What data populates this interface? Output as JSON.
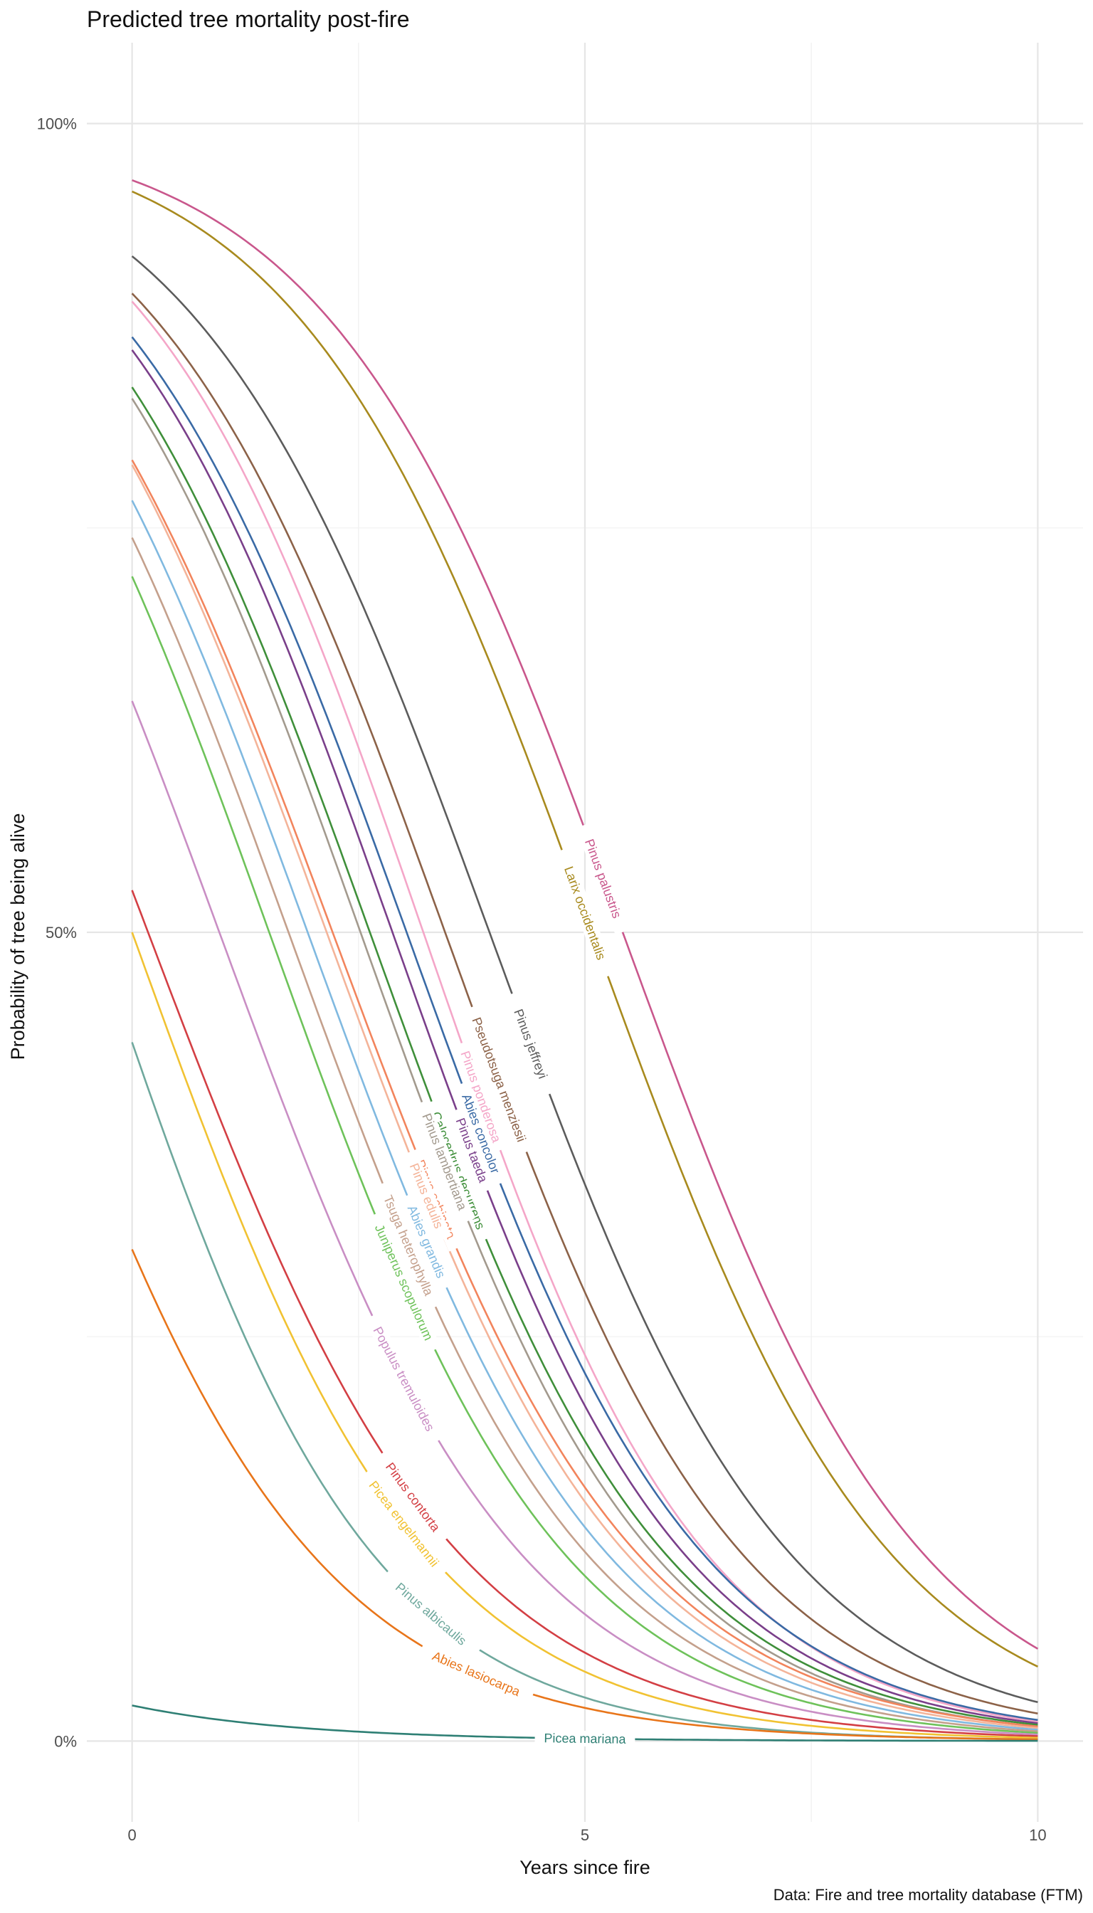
{
  "chart_data": {
    "type": "line",
    "title": "Predicted tree mortality post-fire",
    "xlabel": "Years since fire",
    "ylabel": "Probability of tree being alive",
    "caption": "Data: Fire and tree mortality database (FTM)",
    "xlim": [
      -0.5,
      10.5
    ],
    "ylim": [
      -0.05,
      1.05
    ],
    "x_ticks": [
      0,
      5,
      10
    ],
    "x_tick_labels": [
      "0",
      "5",
      "10"
    ],
    "y_ticks": [
      0,
      0.5,
      1
    ],
    "y_tick_labels": [
      "0%",
      "50%",
      "100%"
    ],
    "grid": true,
    "legend": "none (direct labels on lines)",
    "series": [
      {
        "name": "Pinus palustris",
        "color": "#c9578c",
        "y0": 0.965,
        "y10": 0.057,
        "label_x": 5.2
      },
      {
        "name": "Larix occidentalis",
        "color": "#a88a1e",
        "y0": 0.958,
        "y10": 0.046,
        "label_x": 5.0
      },
      {
        "name": "Pinus jeffreyi",
        "color": "#5c5c5c",
        "y0": 0.918,
        "y10": 0.024,
        "label_x": 4.4
      },
      {
        "name": "Pseudotsuga menziesii",
        "color": "#8c6248",
        "y0": 0.895,
        "y10": 0.017,
        "label_x": 4.05
      },
      {
        "name": "Pinus ponderosa",
        "color": "#f4a6c8",
        "y0": 0.89,
        "y10": 0.012,
        "label_x": 3.85
      },
      {
        "name": "Abies concolor",
        "color": "#3a6aa5",
        "y0": 0.868,
        "y10": 0.013,
        "label_x": 3.85
      },
      {
        "name": "Pinus taeda",
        "color": "#7a3f8a",
        "y0": 0.86,
        "y10": 0.011,
        "label_x": 3.75
      },
      {
        "name": "Calocedrus decurrens",
        "color": "#3f8f3a",
        "y0": 0.837,
        "y10": 0.01,
        "label_x": 3.6
      },
      {
        "name": "Pinus lambertiana",
        "color": "#a39a8e",
        "y0": 0.83,
        "y10": 0.009,
        "label_x": 3.45
      },
      {
        "name": "Pinus echinata",
        "color": "#f2845c",
        "y0": 0.792,
        "y10": 0.009,
        "label_x": 3.35
      },
      {
        "name": "Pinus edulis",
        "color": "#f4b499",
        "y0": 0.789,
        "y10": 0.008,
        "label_x": 3.25
      },
      {
        "name": "Abies grandis",
        "color": "#80b9e0",
        "y0": 0.767,
        "y10": 0.007,
        "label_x": 3.25
      },
      {
        "name": "Tsuga heterophylla",
        "color": "#c4a08c",
        "y0": 0.744,
        "y10": 0.006,
        "label_x": 3.05
      },
      {
        "name": "Juniperus scopulorum",
        "color": "#6ec25a",
        "y0": 0.72,
        "y10": 0.005,
        "label_x": 3.0
      },
      {
        "name": "Populus tremuloides",
        "color": "#c98ec4",
        "y0": 0.643,
        "y10": 0.004,
        "label_x": 3.0
      },
      {
        "name": "Pinus contorta",
        "color": "#d33f44",
        "y0": 0.526,
        "y10": 0.003,
        "label_x": 3.1
      },
      {
        "name": "Picea engelmannii",
        "color": "#f1c232",
        "y0": 0.5,
        "y10": 0.002,
        "label_x": 3.0
      },
      {
        "name": "Pinus albicaulis",
        "color": "#6fa89d",
        "y0": 0.432,
        "y10": 0.001,
        "label_x": 3.3
      },
      {
        "name": "Abies lasiocarpa",
        "color": "#e8751a",
        "y0": 0.304,
        "y10": 0.001,
        "label_x": 3.8
      },
      {
        "name": "Picea mariana",
        "color": "#2e7f74",
        "y0": 0.022,
        "y10": 0.0001,
        "label_x": 5.0
      }
    ]
  }
}
